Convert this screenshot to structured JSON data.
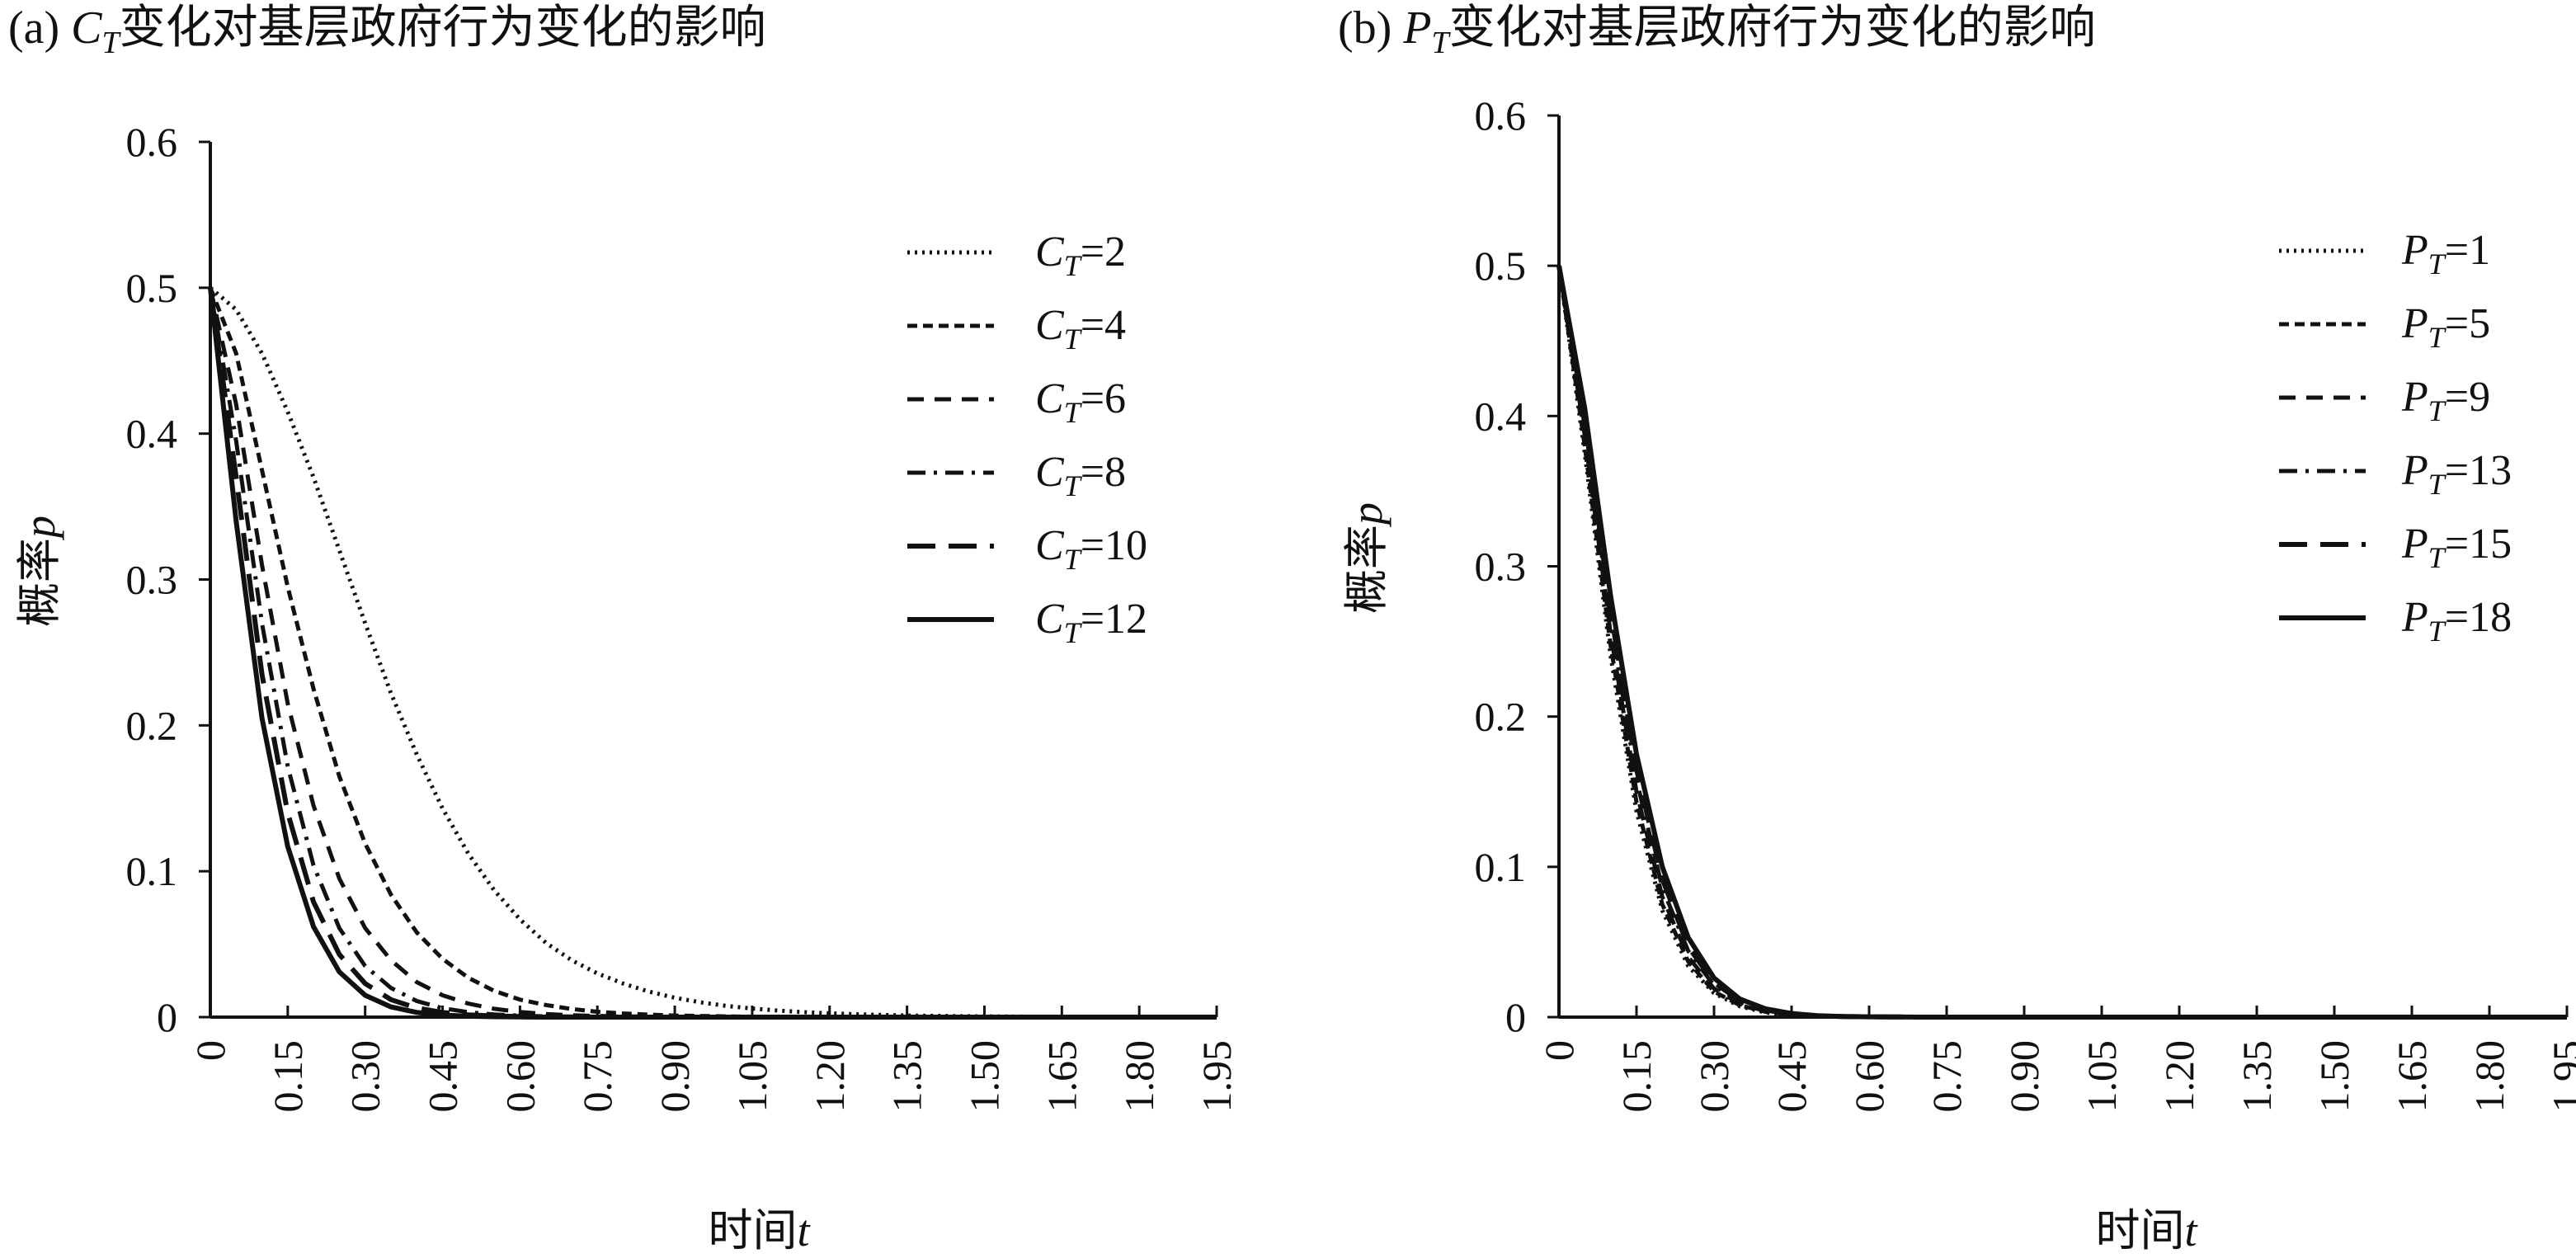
{
  "chart_data": [
    {
      "type": "line",
      "title": {
        "prefix": "(a)",
        "symbol": "C",
        "subscript": "T",
        "text": "变化对基层政府行为变化的影响"
      },
      "xlabel": {
        "text": "时间",
        "var": "t"
      },
      "ylabel": {
        "text": "概率",
        "var": "p"
      },
      "xlim": [
        0,
        1.95
      ],
      "ylim": [
        0,
        0.6
      ],
      "x_ticks": [
        "0",
        "0.15",
        "0.30",
        "0.45",
        "0.60",
        "0.75",
        "0.90",
        "1.05",
        "1.20",
        "1.35",
        "1.50",
        "1.65",
        "1.80",
        "1.95"
      ],
      "y_ticks": [
        "0",
        "0.1",
        "0.2",
        "0.3",
        "0.4",
        "0.5",
        "0.6"
      ],
      "legend_position": "top-right",
      "x": [
        0,
        0.05,
        0.1,
        0.15,
        0.2,
        0.25,
        0.3,
        0.35,
        0.4,
        0.45,
        0.5,
        0.55,
        0.6,
        0.65,
        0.7,
        0.75,
        0.8,
        0.85,
        0.9,
        0.95,
        1.0,
        1.05,
        1.1,
        1.15,
        1.2,
        1.25,
        1.3,
        1.35,
        1.4,
        1.45,
        1.5,
        1.55,
        1.6,
        1.65,
        1.7,
        1.75,
        1.8,
        1.85,
        1.9,
        1.95
      ],
      "series": [
        {
          "name": {
            "symbol": "C",
            "subscript": "T",
            "value": "=2"
          },
          "dash": "dotted",
          "values": [
            0.5,
            0.485,
            0.455,
            0.415,
            0.37,
            0.32,
            0.27,
            0.222,
            0.18,
            0.143,
            0.112,
            0.087,
            0.067,
            0.051,
            0.039,
            0.03,
            0.023,
            0.0175,
            0.0133,
            0.0101,
            0.0077,
            0.0059,
            0.0045,
            0.0034,
            0.0026,
            0.002,
            0.0015,
            0.0011,
            0.0009,
            0.0007,
            0.0005,
            0.0004,
            0.0003,
            0.0002,
            0.0002,
            0.0001,
            0.0001,
            0.0001,
            0.0001,
            0.0
          ]
        },
        {
          "name": {
            "symbol": "C",
            "subscript": "T",
            "value": "=4"
          },
          "dash": "short-dash",
          "values": [
            0.5,
            0.455,
            0.375,
            0.295,
            0.225,
            0.165,
            0.119,
            0.084,
            0.058,
            0.04,
            0.027,
            0.018,
            0.012,
            0.0083,
            0.0056,
            0.0037,
            0.0025,
            0.0017,
            0.0011,
            0.0008,
            0.0005,
            0.0003,
            0.0002,
            0.0002,
            0.0001,
            0.0001,
            0.0,
            0.0,
            0.0,
            0.0,
            0.0,
            0.0,
            0.0,
            0.0,
            0.0,
            0.0,
            0.0,
            0.0,
            0.0,
            0.0
          ]
        },
        {
          "name": {
            "symbol": "C",
            "subscript": "T",
            "value": "=6"
          },
          "dash": "dash",
          "values": [
            0.5,
            0.42,
            0.31,
            0.215,
            0.145,
            0.095,
            0.061,
            0.039,
            0.024,
            0.015,
            0.0093,
            0.0057,
            0.0035,
            0.0021,
            0.0013,
            0.0008,
            0.0005,
            0.0003,
            0.0002,
            0.0001,
            0.0001,
            0.0,
            0.0,
            0.0,
            0.0,
            0.0,
            0.0,
            0.0,
            0.0,
            0.0,
            0.0,
            0.0,
            0.0,
            0.0,
            0.0,
            0.0,
            0.0,
            0.0,
            0.0,
            0.0
          ]
        },
        {
          "name": {
            "symbol": "C",
            "subscript": "T",
            "value": "=8"
          },
          "dash": "dash-dot",
          "values": [
            0.5,
            0.395,
            0.27,
            0.172,
            0.104,
            0.061,
            0.035,
            0.02,
            0.011,
            0.0061,
            0.0034,
            0.0018,
            0.001,
            0.0005,
            0.0003,
            0.0002,
            0.0001,
            0.0,
            0.0,
            0.0,
            0.0,
            0.0,
            0.0,
            0.0,
            0.0,
            0.0,
            0.0,
            0.0,
            0.0,
            0.0,
            0.0,
            0.0,
            0.0,
            0.0,
            0.0,
            0.0,
            0.0,
            0.0,
            0.0,
            0.0
          ]
        },
        {
          "name": {
            "symbol": "C",
            "subscript": "T",
            "value": "=10"
          },
          "dash": "long-dash",
          "values": [
            0.5,
            0.37,
            0.235,
            0.14,
            0.079,
            0.043,
            0.023,
            0.012,
            0.0062,
            0.0032,
            0.0016,
            0.0008,
            0.0004,
            0.0002,
            0.0001,
            0.0,
            0.0,
            0.0,
            0.0,
            0.0,
            0.0,
            0.0,
            0.0,
            0.0,
            0.0,
            0.0,
            0.0,
            0.0,
            0.0,
            0.0,
            0.0,
            0.0,
            0.0,
            0.0,
            0.0,
            0.0,
            0.0,
            0.0,
            0.0,
            0.0
          ]
        },
        {
          "name": {
            "symbol": "C",
            "subscript": "T",
            "value": "=12"
          },
          "dash": "solid",
          "values": [
            0.5,
            0.34,
            0.205,
            0.117,
            0.062,
            0.031,
            0.015,
            0.007,
            0.0032,
            0.0014,
            0.0006,
            0.0003,
            0.0001,
            0.0,
            0.0,
            0.0,
            0.0,
            0.0,
            0.0,
            0.0,
            0.0,
            0.0,
            0.0,
            0.0,
            0.0,
            0.0,
            0.0,
            0.0,
            0.0,
            0.0,
            0.0,
            0.0,
            0.0,
            0.0,
            0.0,
            0.0,
            0.0,
            0.0,
            0.0,
            0.0
          ]
        }
      ]
    },
    {
      "type": "line",
      "title": {
        "prefix": "(b)",
        "symbol": "P",
        "subscript": "T",
        "text": "变化对基层政府行为变化的影响"
      },
      "xlabel": {
        "text": "时间",
        "var": "t"
      },
      "ylabel": {
        "text": "概率",
        "var": "p"
      },
      "xlim": [
        0,
        1.95
      ],
      "ylim": [
        0,
        0.6
      ],
      "x_ticks": [
        "0",
        "0.15",
        "0.30",
        "0.45",
        "0.60",
        "0.75",
        "0.90",
        "1.05",
        "1.20",
        "1.35",
        "1.50",
        "1.65",
        "1.80",
        "1.95"
      ],
      "y_ticks": [
        "0",
        "0.1",
        "0.2",
        "0.3",
        "0.4",
        "0.5",
        "0.6"
      ],
      "legend_position": "top-right",
      "x": [
        0,
        0.05,
        0.1,
        0.15,
        0.2,
        0.25,
        0.3,
        0.35,
        0.4,
        0.45,
        0.5,
        0.55,
        0.6,
        0.65,
        0.7,
        0.75,
        0.8,
        0.85,
        0.9,
        0.95,
        1.0,
        1.05,
        1.1,
        1.15,
        1.2,
        1.25,
        1.3,
        1.35,
        1.4,
        1.45,
        1.5,
        1.55,
        1.6,
        1.65,
        1.7,
        1.75,
        1.8,
        1.85,
        1.9,
        1.95
      ],
      "series": [
        {
          "name": {
            "symbol": "P",
            "subscript": "T",
            "value": "=1"
          },
          "dash": "dotted",
          "values": [
            0.5,
            0.375,
            0.24,
            0.137,
            0.071,
            0.034,
            0.016,
            0.0072,
            0.0031,
            0.0013,
            0.0005,
            0.0002,
            0.0001,
            0.0,
            0.0,
            0.0,
            0.0,
            0.0,
            0.0,
            0.0,
            0.0,
            0.0,
            0.0,
            0.0,
            0.0,
            0.0,
            0.0,
            0.0,
            0.0,
            0.0,
            0.0,
            0.0,
            0.0,
            0.0,
            0.0,
            0.0,
            0.0,
            0.0,
            0.0,
            0.0
          ]
        },
        {
          "name": {
            "symbol": "P",
            "subscript": "T",
            "value": "=5"
          },
          "dash": "short-dash",
          "values": [
            0.5,
            0.38,
            0.247,
            0.143,
            0.075,
            0.037,
            0.017,
            0.0079,
            0.0035,
            0.0015,
            0.0006,
            0.0003,
            0.0001,
            0.0,
            0.0,
            0.0,
            0.0,
            0.0,
            0.0,
            0.0,
            0.0,
            0.0,
            0.0,
            0.0,
            0.0,
            0.0,
            0.0,
            0.0,
            0.0,
            0.0,
            0.0,
            0.0,
            0.0,
            0.0,
            0.0,
            0.0,
            0.0,
            0.0,
            0.0,
            0.0
          ]
        },
        {
          "name": {
            "symbol": "P",
            "subscript": "T",
            "value": "=9"
          },
          "dash": "dash",
          "values": [
            0.5,
            0.387,
            0.255,
            0.15,
            0.08,
            0.04,
            0.019,
            0.0088,
            0.0039,
            0.0017,
            0.0007,
            0.0003,
            0.0001,
            0.0,
            0.0,
            0.0,
            0.0,
            0.0,
            0.0,
            0.0,
            0.0,
            0.0,
            0.0,
            0.0,
            0.0,
            0.0,
            0.0,
            0.0,
            0.0,
            0.0,
            0.0,
            0.0,
            0.0,
            0.0,
            0.0,
            0.0,
            0.0,
            0.0,
            0.0,
            0.0
          ]
        },
        {
          "name": {
            "symbol": "P",
            "subscript": "T",
            "value": "=13"
          },
          "dash": "dash-dot",
          "values": [
            0.5,
            0.393,
            0.263,
            0.158,
            0.086,
            0.044,
            0.021,
            0.0099,
            0.0044,
            0.0019,
            0.0008,
            0.0003,
            0.0001,
            0.0,
            0.0,
            0.0,
            0.0,
            0.0,
            0.0,
            0.0,
            0.0,
            0.0,
            0.0,
            0.0,
            0.0,
            0.0,
            0.0,
            0.0,
            0.0,
            0.0,
            0.0,
            0.0,
            0.0,
            0.0,
            0.0,
            0.0,
            0.0,
            0.0,
            0.0,
            0.0
          ]
        },
        {
          "name": {
            "symbol": "P",
            "subscript": "T",
            "value": "=15"
          },
          "dash": "long-dash",
          "values": [
            0.5,
            0.398,
            0.27,
            0.165,
            0.092,
            0.047,
            0.023,
            0.011,
            0.0049,
            0.0021,
            0.0009,
            0.0004,
            0.0002,
            0.0001,
            0.0,
            0.0,
            0.0,
            0.0,
            0.0,
            0.0,
            0.0,
            0.0,
            0.0,
            0.0,
            0.0,
            0.0,
            0.0,
            0.0,
            0.0,
            0.0,
            0.0,
            0.0,
            0.0,
            0.0,
            0.0,
            0.0,
            0.0,
            0.0,
            0.0,
            0.0
          ]
        },
        {
          "name": {
            "symbol": "P",
            "subscript": "T",
            "value": "=18"
          },
          "dash": "solid",
          "values": [
            0.5,
            0.405,
            0.28,
            0.175,
            0.1,
            0.053,
            0.026,
            0.012,
            0.0055,
            0.0024,
            0.001,
            0.0004,
            0.0002,
            0.0001,
            0.0,
            0.0,
            0.0,
            0.0,
            0.0,
            0.0,
            0.0,
            0.0,
            0.0,
            0.0,
            0.0,
            0.0,
            0.0,
            0.0,
            0.0,
            0.0,
            0.0,
            0.0,
            0.0,
            0.0,
            0.0,
            0.0,
            0.0,
            0.0,
            0.0,
            0.0
          ]
        }
      ]
    }
  ]
}
